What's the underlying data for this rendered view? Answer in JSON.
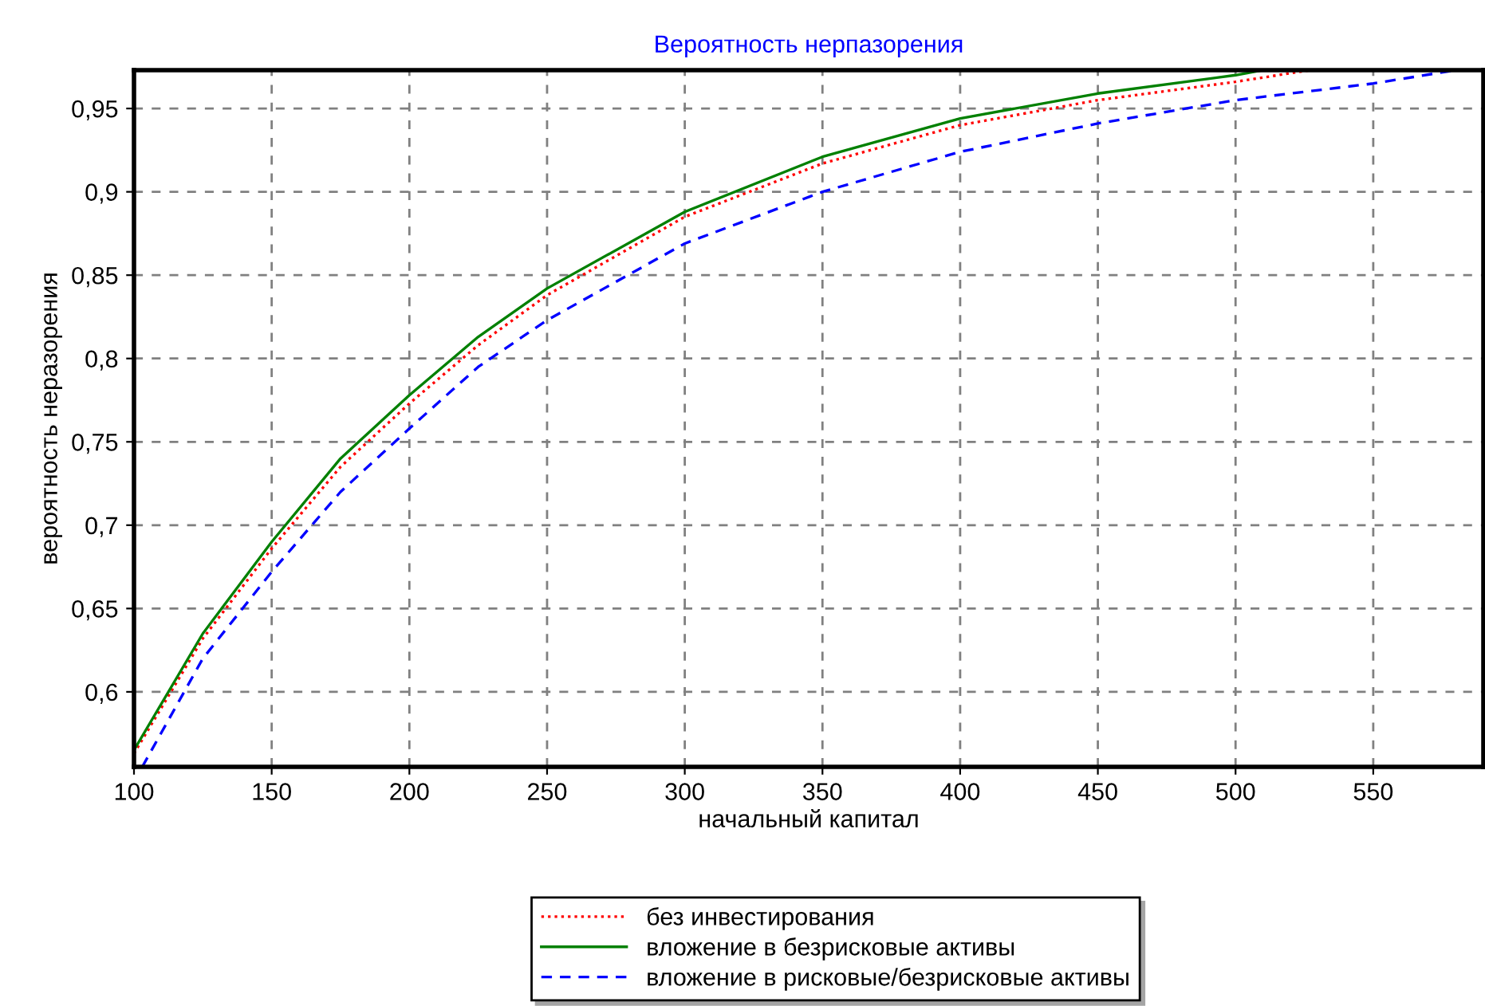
{
  "chart_data": {
    "type": "line",
    "title": "Вероятность нерпазорения",
    "xlabel": "начальный капитал",
    "ylabel": "вероятность неразорения",
    "xlim": [
      100,
      590
    ],
    "xticks": [
      100,
      150,
      200,
      250,
      300,
      350,
      400,
      450,
      500,
      550
    ],
    "ylim": [
      0.555,
      0.973
    ],
    "yticks": [
      {
        "value": 0.6,
        "label": "0,6"
      },
      {
        "value": 0.65,
        "label": "0,65"
      },
      {
        "value": 0.7,
        "label": "0,7"
      },
      {
        "value": 0.75,
        "label": "0,75"
      },
      {
        "value": 0.8,
        "label": "0,8"
      },
      {
        "value": 0.85,
        "label": "0,85"
      },
      {
        "value": 0.9,
        "label": "0,9"
      },
      {
        "value": 0.95,
        "label": "0,95"
      }
    ],
    "grid": true,
    "legend": "bottom",
    "marker": "none",
    "series": [
      {
        "name": "без инвестирования",
        "color": "#ff0000",
        "line_style": "dotted",
        "x": [
          100,
          125,
          150,
          175,
          200,
          225,
          250,
          300,
          350,
          400,
          450,
          500,
          527
        ],
        "values": [
          0.563,
          0.632,
          0.686,
          0.735,
          0.773,
          0.808,
          0.838,
          0.885,
          0.917,
          0.94,
          0.955,
          0.966,
          0.973
        ]
      },
      {
        "name": "вложение в безрисковые активы",
        "color": "#008000",
        "line_style": "solid",
        "x": [
          100,
          125,
          150,
          175,
          200,
          225,
          250,
          300,
          350,
          400,
          450,
          500,
          510
        ],
        "values": [
          0.565,
          0.635,
          0.69,
          0.74,
          0.778,
          0.813,
          0.842,
          0.888,
          0.921,
          0.944,
          0.959,
          0.97,
          0.973
        ]
      },
      {
        "name": "вложение в рисковые/безрисковые активы",
        "color": "#0000ff",
        "line_style": "dashed",
        "x": [
          103,
          125,
          150,
          175,
          200,
          225,
          250,
          300,
          350,
          400,
          450,
          500,
          550,
          580
        ],
        "values": [
          0.555,
          0.62,
          0.672,
          0.72,
          0.758,
          0.795,
          0.823,
          0.869,
          0.9,
          0.924,
          0.941,
          0.955,
          0.965,
          0.973
        ]
      }
    ]
  }
}
